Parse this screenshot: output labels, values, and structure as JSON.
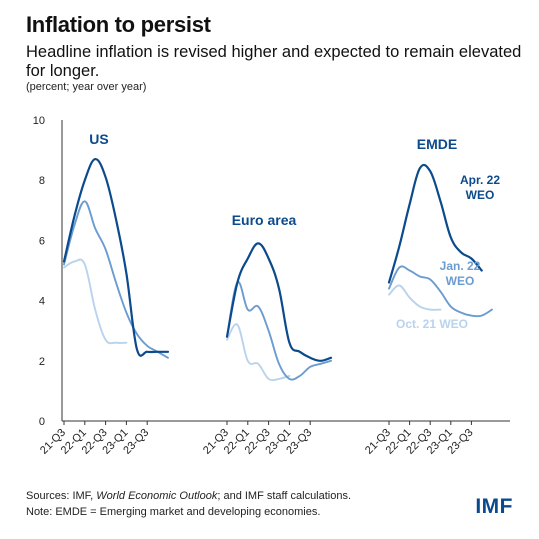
{
  "header": {
    "title": "Inflation to persist",
    "subtitle": "Headline inflation is revised higher and expected to remain elevated for longer.",
    "unit": "(percent; year over year)"
  },
  "footer": {
    "sources_prefix": "Sources: IMF, ",
    "sources_italic": "World Economic Outlook",
    "sources_suffix": "; and IMF staff calculations.",
    "note": "Note: EMDE = Emerging market and developing economies.",
    "logo": "IMF"
  },
  "colors": {
    "apr22": "#0b4a8c",
    "jan22": "#6a9cd0",
    "oct21": "#b9d3ec",
    "axis": "#333333"
  },
  "chart_data": {
    "type": "line",
    "ylim": [
      0,
      10
    ],
    "yticks": [
      "0",
      "2",
      "4",
      "6",
      "8",
      "10"
    ],
    "xticks": [
      "21-Q3",
      "22-Q1",
      "22-Q3",
      "23-Q1",
      "23-Q3"
    ],
    "legend": [
      "Apr. 22 WEO",
      "Jan. 22 WEO",
      "Oct. 21 WEO"
    ],
    "panels": [
      {
        "name": "US",
        "series": [
          {
            "vintage": "Apr. 22 WEO",
            "values": [
              5.3,
              6.8,
              8.0,
              8.7,
              8.1,
              6.7,
              4.9,
              2.4,
              2.3,
              2.3,
              2.3
            ]
          },
          {
            "vintage": "Jan. 22 WEO",
            "values": [
              5.2,
              6.5,
              7.3,
              6.4,
              5.7,
              4.6,
              3.6,
              2.9,
              2.5,
              2.3,
              2.1
            ]
          },
          {
            "vintage": "Oct. 21 WEO",
            "values": [
              5.1,
              5.3,
              5.2,
              3.7,
              2.7,
              2.6,
              2.6
            ]
          }
        ]
      },
      {
        "name": "Euro area",
        "series": [
          {
            "vintage": "Apr. 22 WEO",
            "values": [
              2.8,
              4.6,
              5.4,
              5.9,
              5.4,
              4.4,
              2.6,
              2.3,
              2.1,
              2.0,
              2.1
            ]
          },
          {
            "vintage": "Jan. 22 WEO",
            "values": [
              2.8,
              4.6,
              3.7,
              3.8,
              3.0,
              1.9,
              1.4,
              1.5,
              1.8,
              1.9,
              2.0
            ]
          },
          {
            "vintage": "Oct. 21 WEO",
            "values": [
              2.7,
              3.2,
              2.0,
              1.9,
              1.4,
              1.4,
              1.5
            ]
          }
        ]
      },
      {
        "name": "EMDE",
        "series": [
          {
            "vintage": "Apr. 22 WEO",
            "values": [
              4.6,
              5.8,
              7.2,
              8.4,
              8.3,
              7.3,
              6.1,
              5.6,
              5.4,
              5.0
            ]
          },
          {
            "vintage": "Jan. 22 WEO",
            "values": [
              4.4,
              5.1,
              5.0,
              4.8,
              4.7,
              4.3,
              3.8,
              3.6,
              3.5,
              3.5,
              3.7
            ]
          },
          {
            "vintage": "Oct. 21 WEO",
            "values": [
              4.2,
              4.5,
              4.1,
              3.8,
              3.7,
              3.7
            ]
          }
        ]
      }
    ]
  }
}
